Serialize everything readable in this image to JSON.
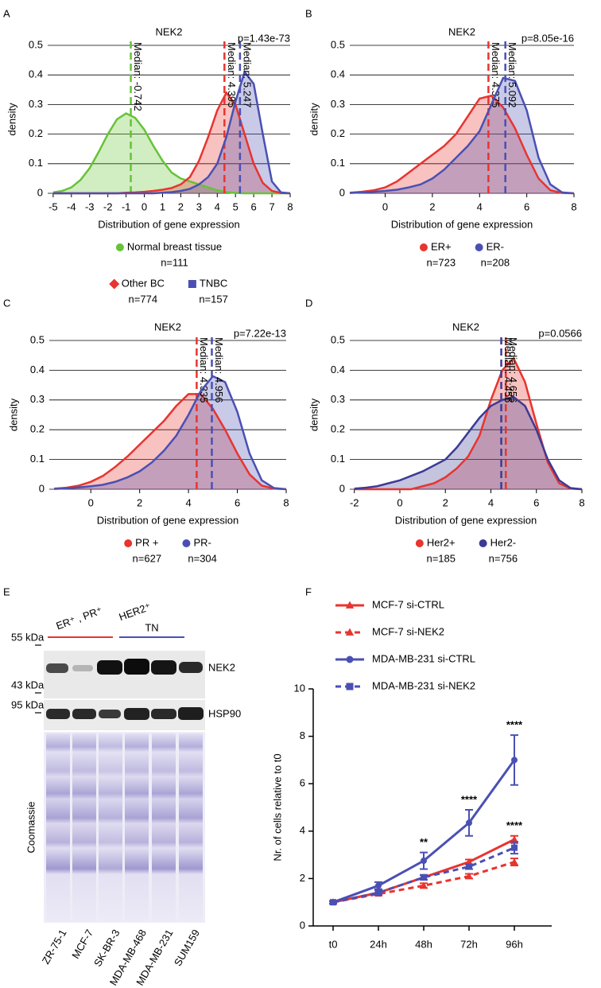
{
  "chart_data": [
    {
      "type": "density",
      "panel": "A",
      "title": "NEK2",
      "annotation": "p=1.43e-73",
      "x_label": "Distribution of gene expression",
      "y_label": "density",
      "xlim": [
        -5.3,
        8
      ],
      "xticks": [
        -5,
        -4,
        -3,
        -2,
        -1,
        0,
        1,
        2,
        3,
        4,
        5,
        6,
        7,
        8
      ],
      "ylim": [
        0,
        0.5
      ],
      "yticks": [
        0,
        0.1,
        0.2,
        0.3,
        0.4,
        0.5
      ],
      "grid": true,
      "x": [
        -5,
        -4.5,
        -4,
        -3.5,
        -3,
        -2.5,
        -2,
        -1.5,
        -1,
        -0.5,
        0,
        0.5,
        1,
        1.5,
        2,
        2.5,
        3,
        3.5,
        4,
        4.5,
        5,
        5.5,
        6,
        6.5,
        7,
        7.5,
        8
      ],
      "series": [
        {
          "name": "Normal breast tissue",
          "n_label": "n=111",
          "marker": "circle",
          "color": "#66c335",
          "median": -0.742,
          "median_label": "Median: -0.742",
          "values": [
            0.003,
            0.008,
            0.02,
            0.045,
            0.085,
            0.14,
            0.2,
            0.25,
            0.27,
            0.255,
            0.215,
            0.16,
            0.11,
            0.07,
            0.05,
            0.04,
            0.03,
            0.02,
            0.01,
            0.004,
            0.001,
            0,
            0,
            0,
            0,
            0,
            0
          ]
        },
        {
          "name": "Other BC",
          "n_label": "n=774",
          "marker": "diamond",
          "color": "#e8342f",
          "median": 4.395,
          "median_label": "Median: 4.395",
          "values": [
            0,
            0,
            0,
            0,
            0,
            0,
            0,
            0,
            0.002,
            0.003,
            0.005,
            0.008,
            0.012,
            0.018,
            0.03,
            0.055,
            0.11,
            0.19,
            0.28,
            0.34,
            0.3,
            0.2,
            0.1,
            0.035,
            0.008,
            0.001,
            0
          ]
        },
        {
          "name": "TNBC",
          "n_label": "n=157",
          "marker": "square",
          "color": "#4a50b3",
          "median": 5.247,
          "median_label": "Median: 5.247",
          "values": [
            0,
            0,
            0,
            0,
            0,
            0,
            0,
            0,
            0,
            0,
            0,
            0,
            0.002,
            0.004,
            0.008,
            0.015,
            0.03,
            0.055,
            0.1,
            0.19,
            0.31,
            0.41,
            0.37,
            0.2,
            0.04,
            0.003,
            0
          ]
        }
      ]
    },
    {
      "type": "density",
      "panel": "B",
      "title": "NEK2",
      "annotation": "p=8.05e-16",
      "x_label": "Distribution of gene expression",
      "y_label": "density",
      "xlim": [
        -1.5,
        8
      ],
      "xticks": [
        0,
        2,
        4,
        6,
        8
      ],
      "ylim": [
        0,
        0.5
      ],
      "yticks": [
        0,
        0.1,
        0.2,
        0.3,
        0.4,
        0.5
      ],
      "grid": true,
      "x": [
        -1.5,
        -1,
        -0.5,
        0,
        0.5,
        1,
        1.5,
        2,
        2.5,
        3,
        3.5,
        4,
        4.5,
        5,
        5.5,
        6,
        6.5,
        7,
        7.5,
        8
      ],
      "series": [
        {
          "name": "ER+",
          "n_label": "n=723",
          "marker": "circle",
          "color": "#e8342f",
          "median": 4.375,
          "median_label": "Median: 4.375",
          "values": [
            0.002,
            0.005,
            0.01,
            0.02,
            0.04,
            0.07,
            0.1,
            0.13,
            0.16,
            0.2,
            0.26,
            0.32,
            0.33,
            0.29,
            0.22,
            0.13,
            0.05,
            0.01,
            0.001,
            0
          ]
        },
        {
          "name": "ER-",
          "n_label": "n=208",
          "marker": "circle",
          "color": "#4a50b3",
          "median": 5.092,
          "median_label": "Median: 5.092",
          "values": [
            0.001,
            0.003,
            0.005,
            0.008,
            0.012,
            0.02,
            0.03,
            0.05,
            0.08,
            0.12,
            0.16,
            0.21,
            0.3,
            0.39,
            0.38,
            0.28,
            0.12,
            0.03,
            0.003,
            0
          ]
        }
      ]
    },
    {
      "type": "density",
      "panel": "C",
      "title": "NEK2",
      "annotation": "p=7.22e-13",
      "x_label": "Distribution of gene expression",
      "y_label": "density",
      "xlim": [
        -1.7,
        8
      ],
      "xticks": [
        0,
        2,
        4,
        6,
        8
      ],
      "ylim": [
        0,
        0.5
      ],
      "yticks": [
        0,
        0.1,
        0.2,
        0.3,
        0.4,
        0.5
      ],
      "grid": true,
      "x": [
        -1.5,
        -1,
        -0.5,
        0,
        0.5,
        1,
        1.5,
        2,
        2.5,
        3,
        3.5,
        4,
        4.5,
        5,
        5.5,
        6,
        6.5,
        7,
        7.5,
        8
      ],
      "series": [
        {
          "name": "PR +",
          "n_label": "n=627",
          "marker": "circle",
          "color": "#e8342f",
          "median": 4.335,
          "median_label": "Median: 4.335",
          "values": [
            0.002,
            0.005,
            0.012,
            0.025,
            0.045,
            0.075,
            0.11,
            0.15,
            0.19,
            0.23,
            0.28,
            0.32,
            0.32,
            0.27,
            0.2,
            0.12,
            0.05,
            0.012,
            0.002,
            0
          ]
        },
        {
          "name": "PR-",
          "n_label": "n=304",
          "marker": "circle",
          "color": "#4a50b3",
          "median": 4.956,
          "median_label": "Median: 4.956",
          "values": [
            0.001,
            0.003,
            0.006,
            0.01,
            0.015,
            0.025,
            0.04,
            0.06,
            0.09,
            0.13,
            0.18,
            0.25,
            0.33,
            0.38,
            0.36,
            0.26,
            0.12,
            0.03,
            0.004,
            0
          ]
        }
      ]
    },
    {
      "type": "density",
      "panel": "D",
      "title": "NEK2",
      "annotation": "p=0.0566",
      "x_label": "Distribution of gene expression",
      "y_label": "density",
      "xlim": [
        -2.2,
        8
      ],
      "xticks": [
        -2,
        0,
        2,
        4,
        6,
        8
      ],
      "ylim": [
        0,
        0.5
      ],
      "yticks": [
        0,
        0.1,
        0.2,
        0.3,
        0.4,
        0.5
      ],
      "grid": true,
      "x": [
        -2,
        -1.5,
        -1,
        -0.5,
        0,
        0.5,
        1,
        1.5,
        2,
        2.5,
        3,
        3.5,
        4,
        4.5,
        5,
        5.5,
        6,
        6.5,
        7,
        7.5,
        8
      ],
      "series": [
        {
          "name": "Her2+",
          "n_label": "n=185",
          "marker": "circle",
          "color": "#e8342f",
          "median": 4.656,
          "median_label": "Median: 4.656",
          "values": [
            0,
            0,
            0,
            0,
            0,
            0,
            0.01,
            0.02,
            0.04,
            0.07,
            0.11,
            0.18,
            0.3,
            0.4,
            0.44,
            0.36,
            0.22,
            0.09,
            0.02,
            0.002,
            0
          ]
        },
        {
          "name": "Her2-",
          "n_label": "n=756",
          "marker": "circle",
          "color": "#3d3a95",
          "median": 4.456,
          "median_label": "Median: 4.456",
          "values": [
            0.002,
            0.005,
            0.01,
            0.02,
            0.03,
            0.045,
            0.06,
            0.08,
            0.1,
            0.14,
            0.19,
            0.24,
            0.28,
            0.3,
            0.31,
            0.28,
            0.2,
            0.1,
            0.03,
            0.004,
            0
          ]
        }
      ]
    },
    {
      "type": "line",
      "panel": "F",
      "y_label": "Nr. of cells relative to t0",
      "categories": [
        "t0",
        "24h",
        "48h",
        "72h",
        "96h"
      ],
      "ylim": [
        0,
        10
      ],
      "yticks": [
        0,
        2,
        4,
        6,
        8,
        10
      ],
      "series": [
        {
          "name": "MCF-7 si-CTRL",
          "color": "#e8342f",
          "marker": "triangle",
          "dashed": false,
          "values": [
            1,
            1.4,
            2.05,
            2.7,
            3.65
          ],
          "errors": [
            0.05,
            0.1,
            0.1,
            0.1,
            0.15
          ],
          "significance": [
            null,
            null,
            null,
            null,
            "****"
          ]
        },
        {
          "name": "MCF-7 si-NEK2",
          "color": "#e8342f",
          "marker": "triangle",
          "dashed": true,
          "values": [
            1,
            1.35,
            1.7,
            2.1,
            2.7
          ],
          "errors": [
            0.05,
            0.05,
            0.1,
            0.1,
            0.15
          ]
        },
        {
          "name": "MDA-MB-231 si-CTRL",
          "color": "#4a50b3",
          "marker": "circle",
          "dashed": false,
          "values": [
            1,
            1.7,
            2.75,
            4.35,
            7.0
          ],
          "errors": [
            0.05,
            0.15,
            0.35,
            0.55,
            1.05
          ],
          "significance": [
            null,
            null,
            "**",
            "****",
            "****"
          ]
        },
        {
          "name": "MDA-MB-231 si-NEK2",
          "color": "#4a50b3",
          "marker": "square",
          "dashed": true,
          "values": [
            1,
            1.4,
            2.05,
            2.5,
            3.3
          ],
          "errors": [
            0.05,
            0.1,
            0.1,
            0.1,
            0.25
          ]
        }
      ]
    }
  ],
  "blot": {
    "panel": "E",
    "groups": [
      {
        "label": "ER⁺ , PR⁺",
        "color": "#e8342f"
      },
      {
        "label": "HER2⁺",
        "color": "#111111"
      },
      {
        "label": "TN",
        "color": "#4a50b3"
      }
    ],
    "size_markers": [
      "55 kDa",
      "43 kDa",
      "95 kDa"
    ],
    "rows": [
      "NEK2",
      "HSP90",
      "Coomassie"
    ],
    "lanes": [
      {
        "label": "ZR-75-1",
        "color": "#e8342f"
      },
      {
        "label": "MCF-7",
        "color": "#e8342f"
      },
      {
        "label": "SK-BR-3",
        "color": "#111111"
      },
      {
        "label": "MDA-MB-468",
        "color": "#4a50b3"
      },
      {
        "label": "MDA-MB-231",
        "color": "#4a50b3"
      },
      {
        "label": "SUM159",
        "color": "#4a50b3"
      }
    ]
  }
}
